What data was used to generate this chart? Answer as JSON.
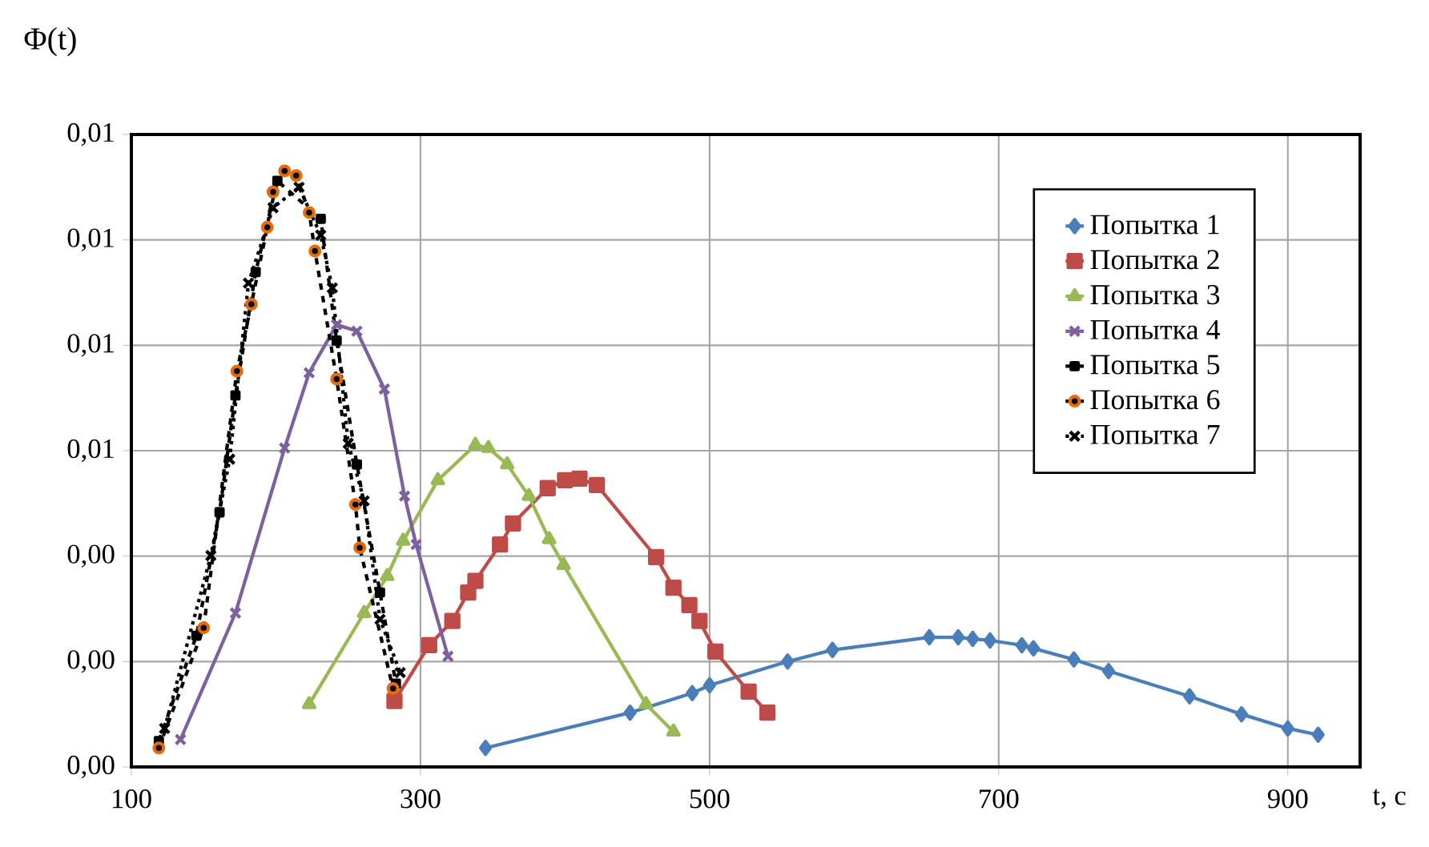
{
  "chart_data": {
    "type": "line",
    "xlabel": "t, c",
    "ylabel": "Φ(t)",
    "xlim": [
      100,
      950
    ],
    "ylim": [
      0,
      0.012
    ],
    "xticks": [
      100,
      300,
      500,
      700,
      900
    ],
    "yticks": [
      {
        "value": 0,
        "label": "0,00"
      },
      {
        "value": 0.002,
        "label": "0,00"
      },
      {
        "value": 0.004,
        "label": "0,00"
      },
      {
        "value": 0.006,
        "label": "0,01"
      },
      {
        "value": 0.008,
        "label": "0,01"
      },
      {
        "value": 0.01,
        "label": "0,01"
      },
      {
        "value": 0.012,
        "label": "0,01"
      }
    ],
    "grid": true,
    "legend": "right",
    "series": [
      {
        "name": "Попытка 1",
        "color": "#4a7ebb",
        "marker": "diamond",
        "line_style": "solid",
        "x": [
          345,
          445,
          488,
          500,
          554,
          585,
          652,
          672,
          682,
          694,
          716,
          724,
          752,
          776,
          832,
          868,
          900,
          921
        ],
        "values": [
          0.00036,
          0.00103,
          0.0014,
          0.00155,
          0.002,
          0.00222,
          0.00246,
          0.00246,
          0.00243,
          0.0024,
          0.00231,
          0.00225,
          0.00204,
          0.00182,
          0.00134,
          0.001,
          0.00073,
          0.00061
        ]
      },
      {
        "name": "Попытка 2",
        "color": "#be4b48",
        "marker": "square",
        "line_style": "solid",
        "x": [
          282,
          306,
          322,
          333,
          338,
          355,
          364,
          388,
          400,
          410,
          422,
          463,
          475,
          486,
          493,
          504,
          527,
          540
        ],
        "values": [
          0.00125,
          0.00231,
          0.00277,
          0.00331,
          0.00353,
          0.00422,
          0.00462,
          0.00529,
          0.00544,
          0.00547,
          0.00535,
          0.00398,
          0.0034,
          0.00307,
          0.00277,
          0.00219,
          0.00143,
          0.00103
        ]
      },
      {
        "name": "Попытка 3",
        "color": "#98b954",
        "marker": "triangle",
        "line_style": "solid",
        "x": [
          223,
          261,
          277,
          288,
          312,
          338,
          347,
          360,
          375,
          389,
          399,
          456,
          475
        ],
        "values": [
          0.00119,
          0.00292,
          0.00362,
          0.00429,
          0.00544,
          0.00611,
          0.00605,
          0.00574,
          0.00514,
          0.00432,
          0.00383,
          0.00119,
          0.00067
        ]
      },
      {
        "name": "Попытка 4",
        "color": "#7d60a0",
        "marker": "cross",
        "line_style": "solid",
        "x": [
          134,
          172,
          206,
          223,
          242,
          256,
          275,
          289,
          297,
          319
        ],
        "values": [
          0.00052,
          0.00292,
          0.00605,
          0.00748,
          0.00839,
          0.00827,
          0.00717,
          0.00514,
          0.00422,
          0.0021
        ]
      },
      {
        "name": "Попытка 5",
        "color": "#000000",
        "marker": "square",
        "line_style": "dashed",
        "x": [
          119,
          145,
          161,
          172,
          186,
          201,
          212,
          231,
          242,
          256,
          272,
          283
        ],
        "values": [
          0.00049,
          0.00249,
          0.00483,
          0.00705,
          0.00939,
          0.01112,
          null,
          0.0104,
          0.00809,
          0.00574,
          0.00331,
          0.00158
        ]
      },
      {
        "name": "Попытка 6",
        "color": "#000000",
        "marker": "circle",
        "line_style": "dashed",
        "x": [
          119,
          150,
          173,
          183,
          194,
          198,
          206,
          214,
          223,
          227,
          242,
          255,
          258,
          281
        ],
        "values": [
          0.00036,
          0.00264,
          0.00751,
          0.00878,
          0.01024,
          0.01091,
          0.01131,
          0.01122,
          0.01052,
          0.00979,
          0.00736,
          0.00498,
          0.00416,
          0.00149
        ]
      },
      {
        "name": "Попытка 7",
        "color": "#000000",
        "marker": "cross",
        "line_style": "dotted",
        "x": [
          123,
          155,
          168,
          181,
          198,
          216,
          231,
          239,
          250,
          261,
          272,
          286
        ],
        "values": [
          0.00073,
          0.00401,
          0.00584,
          0.00918,
          0.01061,
          0.011,
          0.01009,
          0.00909,
          0.00614,
          0.00505,
          0.0028,
          0.00179
        ]
      }
    ]
  }
}
